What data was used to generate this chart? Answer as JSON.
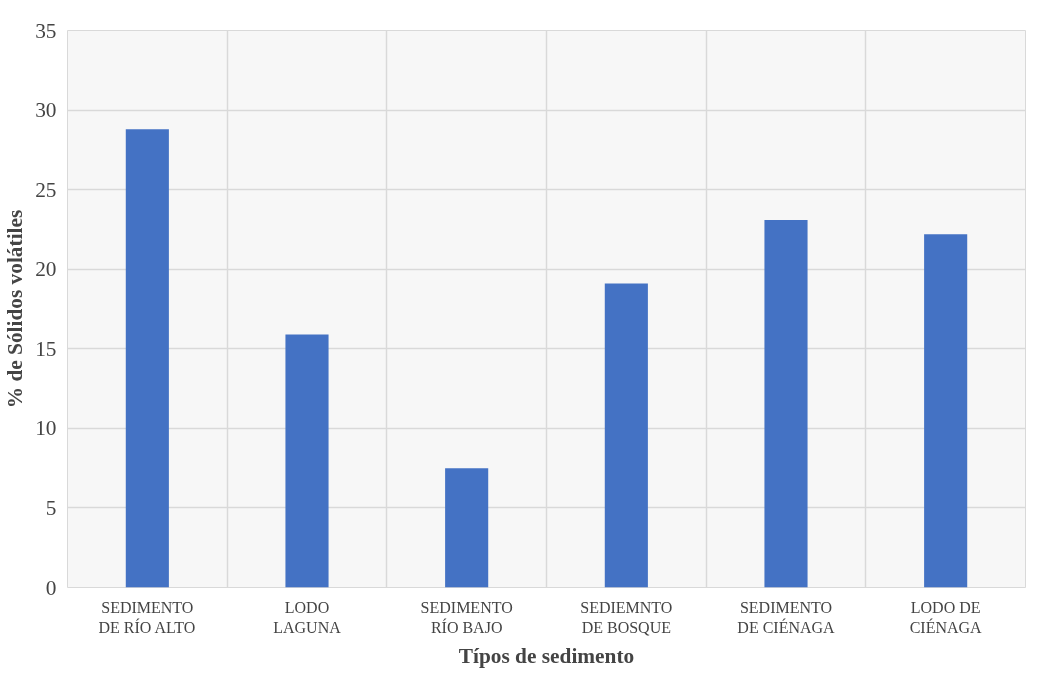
{
  "chart_data": {
    "type": "bar",
    "xlabel": "Típos de sedimento",
    "ylabel": "% de Sólidos volátiles",
    "categories": [
      "SEDIMENTO\nDE RÍO ALTO",
      "LODO\nLAGUNA",
      "SEDIMENTO\nRÍO BAJO",
      "SEDIEMNTO\nDE BOSQUE",
      "SEDIMENTO\nDE CIÉNAGA",
      "LODO DE\nCIÉNAGA"
    ],
    "values": [
      28.8,
      15.9,
      7.5,
      19.1,
      23.1,
      22.2
    ],
    "color": "#4472c4",
    "ylim": [
      0,
      35
    ],
    "yticks": [
      0,
      5,
      10,
      15,
      20,
      25,
      30,
      35
    ],
    "grid": true
  }
}
